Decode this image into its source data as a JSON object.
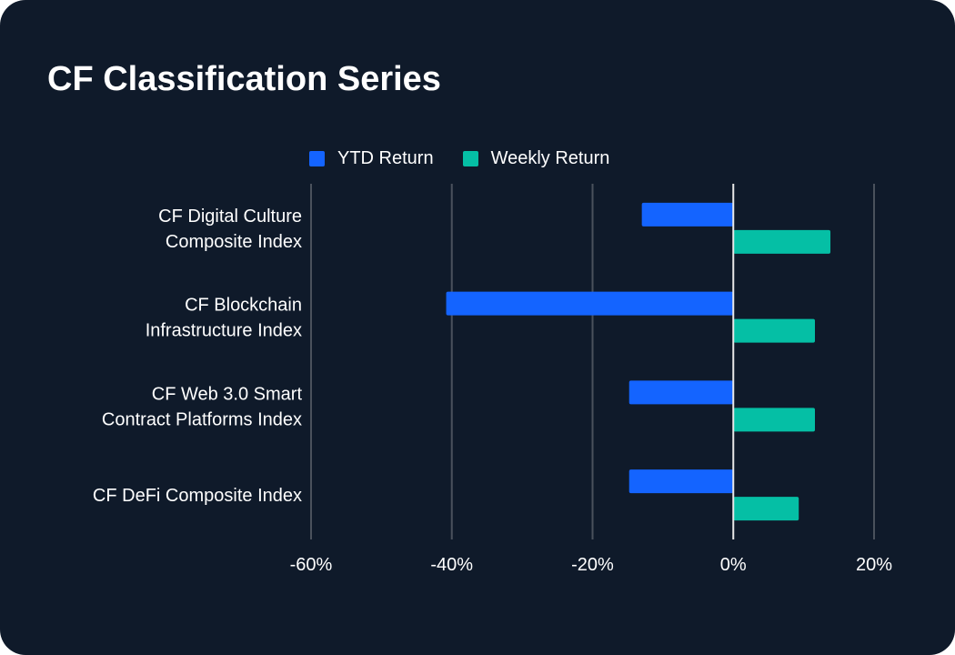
{
  "colors": {
    "background": "#0f1a2a",
    "ytd": "#1464ff",
    "weekly": "#05bfa5",
    "grid": "#4a515c",
    "zero_line": "#e8e8e8",
    "text": "#ffffff"
  },
  "legend": {
    "ytd_label": "YTD Return",
    "weekly_label": "Weekly Return"
  },
  "chart_data": {
    "type": "bar",
    "orientation": "horizontal",
    "title": "CF Classification Series",
    "categories": [
      [
        "CF Digital Culture",
        "Composite Index"
      ],
      [
        "CF Blockchain",
        "Infrastructure Index"
      ],
      [
        "CF Web 3.0 Smart",
        "Contract Platforms Index"
      ],
      [
        "CF DeFi Composite Index"
      ]
    ],
    "series": [
      {
        "name": "YTD Return",
        "values": [
          -13,
          -40.8,
          -14.8,
          -14.8
        ]
      },
      {
        "name": "Weekly Return",
        "values": [
          13.8,
          11.6,
          11.6,
          9.3
        ]
      }
    ],
    "xlim": [
      -60,
      20
    ],
    "xticks": [
      -60,
      -40,
      -20,
      0,
      20
    ],
    "xtick_labels": [
      "-60%",
      "-40%",
      "-20%",
      "0%",
      "20%"
    ],
    "xlabel": "",
    "ylabel": "",
    "grid": true,
    "legend_position": "top"
  }
}
